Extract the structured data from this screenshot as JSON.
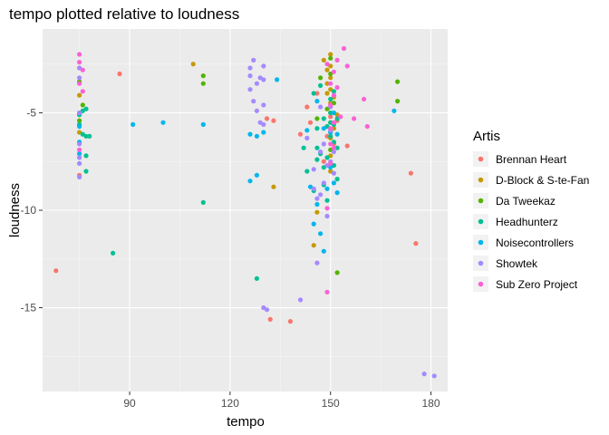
{
  "chart_data": {
    "type": "scatter",
    "title": "tempo plotted relative to loudness",
    "xlabel": "tempo",
    "ylabel": "loudness",
    "xlim": [
      64,
      185
    ],
    "ylim": [
      -19.3,
      -0.7
    ],
    "x_ticks": [
      90,
      120,
      150,
      180
    ],
    "x_tick_labels": [
      "90",
      "120",
      "150",
      "180"
    ],
    "y_ticks": [
      -5,
      -10,
      -15
    ],
    "y_tick_labels": [
      "-5",
      "-10",
      "-15"
    ],
    "grid": true,
    "legend": {
      "title": "Artis",
      "placement": "right"
    },
    "series": [
      {
        "name": "Brennan Heart",
        "color": "#F8766D",
        "points": [
          [
            68,
            -13.1
          ],
          [
            87,
            -3.0
          ],
          [
            131,
            -5.3
          ],
          [
            132,
            -15.6
          ],
          [
            133,
            -5.4
          ],
          [
            138,
            -15.7
          ],
          [
            141,
            -6.1
          ],
          [
            143,
            -4.7
          ],
          [
            144,
            -5.5
          ],
          [
            146,
            -4.0
          ],
          [
            148,
            -7.5
          ],
          [
            149,
            -6.2
          ],
          [
            150,
            -5.2
          ],
          [
            150,
            -6.0
          ],
          [
            151,
            -6.6
          ],
          [
            152,
            -5.4
          ],
          [
            155,
            -6.7
          ],
          [
            174,
            -8.1
          ],
          [
            175.5,
            -11.7
          ],
          [
            75,
            -8.2
          ],
          [
            75,
            -5.1
          ]
        ]
      },
      {
        "name": "D-Block & S-te-Fan",
        "color": "#C49A00",
        "points": [
          [
            75,
            -4.1
          ],
          [
            75,
            -5.0
          ],
          [
            75,
            -6.0
          ],
          [
            109,
            -2.5
          ],
          [
            133,
            -8.8
          ],
          [
            145,
            -11.8
          ],
          [
            148,
            -2.3
          ],
          [
            149,
            -2.8
          ],
          [
            149,
            -3.5
          ],
          [
            149,
            -4.0
          ],
          [
            150,
            -2.0
          ],
          [
            150,
            -2.6
          ],
          [
            150,
            -3.2
          ],
          [
            150,
            -3.8
          ],
          [
            150,
            -4.5
          ],
          [
            150,
            -5.0
          ],
          [
            150,
            -5.5
          ],
          [
            150,
            -6.3
          ],
          [
            150,
            -7.2
          ],
          [
            150,
            -8.0
          ],
          [
            151,
            -4.2
          ],
          [
            151,
            -5.8
          ],
          [
            152,
            -5.1
          ],
          [
            146,
            -10.1
          ]
        ]
      },
      {
        "name": "Da Tweekaz",
        "color": "#53B400",
        "points": [
          [
            75,
            -3.4
          ],
          [
            75,
            -5.4
          ],
          [
            76,
            -4.6
          ],
          [
            112,
            -3.1
          ],
          [
            112,
            -3.5
          ],
          [
            147,
            -3.2
          ],
          [
            149,
            -4.8
          ],
          [
            150,
            -2.2
          ],
          [
            150,
            -3.0
          ],
          [
            150,
            -6.9
          ],
          [
            151,
            -4.5
          ],
          [
            152,
            -13.2
          ],
          [
            170,
            -3.4
          ],
          [
            170,
            -4.4
          ],
          [
            146,
            -5.3
          ]
        ]
      },
      {
        "name": "Headhunterz",
        "color": "#00C094",
        "points": [
          [
            75,
            -5.1
          ],
          [
            75,
            -5.6
          ],
          [
            76,
            -4.9
          ],
          [
            76,
            -6.1
          ],
          [
            77,
            -4.8
          ],
          [
            77,
            -6.2
          ],
          [
            77,
            -7.2
          ],
          [
            77,
            -8.0
          ],
          [
            78,
            -6.2
          ],
          [
            85,
            -12.2
          ],
          [
            112,
            -9.6
          ],
          [
            128,
            -13.5
          ],
          [
            142,
            -6.8
          ],
          [
            143,
            -8.0
          ],
          [
            145,
            -4.0
          ],
          [
            146,
            -5.8
          ],
          [
            146,
            -6.8
          ],
          [
            146,
            -7.4
          ],
          [
            147,
            -3.6
          ],
          [
            147,
            -7.1
          ],
          [
            148,
            -5.3
          ],
          [
            148,
            -7.8
          ],
          [
            148,
            -8.7
          ],
          [
            149,
            -5.7
          ],
          [
            149,
            -7.3
          ],
          [
            150,
            -4.3
          ],
          [
            150,
            -5.0
          ],
          [
            150,
            -5.5
          ],
          [
            150,
            -6.2
          ],
          [
            151,
            -3.9
          ],
          [
            151,
            -5.6
          ],
          [
            151,
            -6.5
          ],
          [
            151,
            -7.7
          ],
          [
            152,
            -5.3
          ],
          [
            152,
            -6.8
          ],
          [
            152,
            -8.4
          ],
          [
            145,
            -9.0
          ],
          [
            149,
            -9.5
          ]
        ]
      },
      {
        "name": "Noisecontrollers",
        "color": "#00B6EB",
        "points": [
          [
            75,
            -5.7
          ],
          [
            75,
            -6.5
          ],
          [
            75,
            -7.1
          ],
          [
            91,
            -5.6
          ],
          [
            100,
            -5.5
          ],
          [
            112,
            -5.6
          ],
          [
            126,
            -6.1
          ],
          [
            126,
            -8.5
          ],
          [
            128,
            -8.2
          ],
          [
            128,
            -6.2
          ],
          [
            130,
            -6.0
          ],
          [
            134,
            -3.3
          ],
          [
            143,
            -5.9
          ],
          [
            144,
            -8.8
          ],
          [
            145,
            -10.7
          ],
          [
            146,
            -4.4
          ],
          [
            146,
            -9.7
          ],
          [
            147,
            -11.2
          ],
          [
            148,
            -5.8
          ],
          [
            148,
            -12.1
          ],
          [
            149,
            -8.9
          ],
          [
            150,
            -6.0
          ],
          [
            150,
            -7.8
          ],
          [
            151,
            -5.0
          ],
          [
            151,
            -8.6
          ],
          [
            152,
            -6.1
          ],
          [
            152,
            -9.1
          ],
          [
            169,
            -4.9
          ]
        ]
      },
      {
        "name": "Showtek",
        "color": "#A58AFF",
        "points": [
          [
            75,
            -2.7
          ],
          [
            75,
            -3.2
          ],
          [
            75,
            -5.0
          ],
          [
            75,
            -6.6
          ],
          [
            75,
            -7.3
          ],
          [
            75,
            -7.6
          ],
          [
            75,
            -8.3
          ],
          [
            126,
            -2.7
          ],
          [
            126,
            -3.1
          ],
          [
            126,
            -3.8
          ],
          [
            127,
            -2.3
          ],
          [
            127,
            -4.4
          ],
          [
            128,
            -3.5
          ],
          [
            128,
            -4.9
          ],
          [
            129,
            -3.2
          ],
          [
            129,
            -5.5
          ],
          [
            130,
            -2.6
          ],
          [
            130,
            -3.3
          ],
          [
            130,
            -4.6
          ],
          [
            130,
            -5.6
          ],
          [
            131,
            -15.1
          ],
          [
            130,
            -15.0
          ],
          [
            141,
            -14.6
          ],
          [
            143,
            -6.3
          ],
          [
            145,
            -7.9
          ],
          [
            145,
            -8.9
          ],
          [
            146,
            -9.4
          ],
          [
            146,
            -12.7
          ],
          [
            147,
            -7.0
          ],
          [
            147,
            -9.2
          ],
          [
            148,
            -6.6
          ],
          [
            148,
            -8.6
          ],
          [
            149,
            -7.7
          ],
          [
            149,
            -10.3
          ],
          [
            150,
            -5.9
          ],
          [
            150,
            -7.5
          ],
          [
            151,
            -7.0
          ],
          [
            151,
            -8.1
          ],
          [
            147,
            -4.7
          ],
          [
            150,
            -4.7
          ],
          [
            178,
            -18.4
          ],
          [
            181,
            -18.5
          ]
        ]
      },
      {
        "name": "Sub Zero Project",
        "color": "#FB61D7",
        "points": [
          [
            75,
            -2.0
          ],
          [
            75,
            -2.4
          ],
          [
            75,
            -3.5
          ],
          [
            75,
            -6.9
          ],
          [
            76,
            -2.8
          ],
          [
            76,
            -3.9
          ],
          [
            149,
            -2.5
          ],
          [
            149,
            -9.9
          ],
          [
            149,
            -14.2
          ],
          [
            150,
            -3.5
          ],
          [
            150,
            -4.6
          ],
          [
            150,
            -5.8
          ],
          [
            150,
            -6.6
          ],
          [
            150,
            -7.6
          ],
          [
            151,
            -2.9
          ],
          [
            151,
            -4.1
          ],
          [
            151,
            -5.5
          ],
          [
            151,
            -6.8
          ],
          [
            152,
            -3.7
          ],
          [
            153,
            -5.2
          ],
          [
            154,
            -1.7
          ],
          [
            155,
            -2.6
          ],
          [
            157,
            -5.3
          ],
          [
            160,
            -4.3
          ],
          [
            161,
            -5.7
          ],
          [
            152,
            -2.3
          ]
        ]
      }
    ]
  }
}
